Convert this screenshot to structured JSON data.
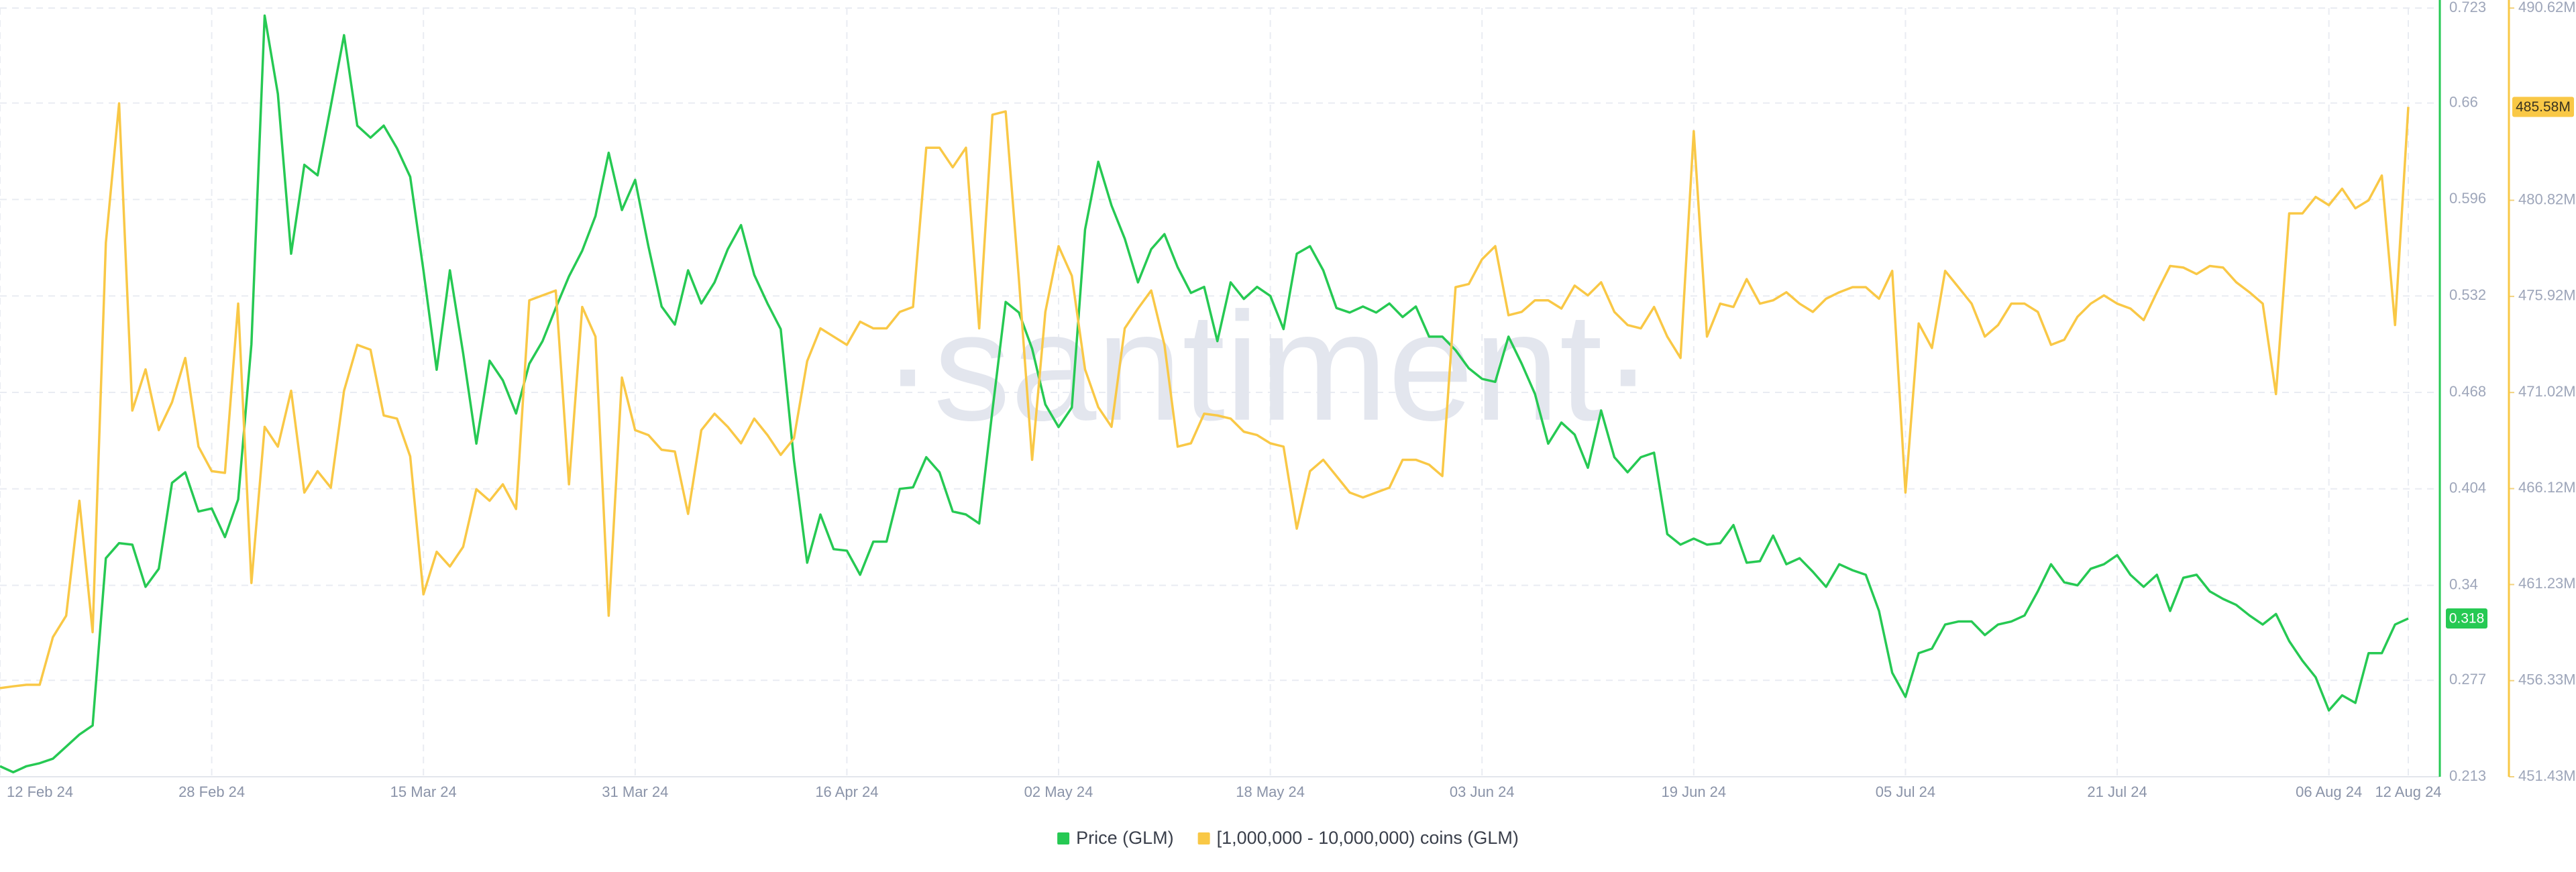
{
  "chart_data": {
    "type": "line",
    "watermark": "·santiment·",
    "x": [
      "2024-02-12",
      "2024-02-13",
      "2024-02-14",
      "2024-02-15",
      "2024-02-16",
      "2024-02-17",
      "2024-02-18",
      "2024-02-19",
      "2024-02-20",
      "2024-02-21",
      "2024-02-22",
      "2024-02-23",
      "2024-02-24",
      "2024-02-25",
      "2024-02-26",
      "2024-02-27",
      "2024-02-28",
      "2024-02-29",
      "2024-03-01",
      "2024-03-02",
      "2024-03-03",
      "2024-03-04",
      "2024-03-05",
      "2024-03-06",
      "2024-03-07",
      "2024-03-08",
      "2024-03-09",
      "2024-03-10",
      "2024-03-11",
      "2024-03-12",
      "2024-03-13",
      "2024-03-14",
      "2024-03-15",
      "2024-03-16",
      "2024-03-17",
      "2024-03-18",
      "2024-03-19",
      "2024-03-20",
      "2024-03-21",
      "2024-03-22",
      "2024-03-23",
      "2024-03-24",
      "2024-03-25",
      "2024-03-26",
      "2024-03-27",
      "2024-03-28",
      "2024-03-29",
      "2024-03-30",
      "2024-03-31",
      "2024-04-01",
      "2024-04-02",
      "2024-04-03",
      "2024-04-04",
      "2024-04-05",
      "2024-04-06",
      "2024-04-07",
      "2024-04-08",
      "2024-04-09",
      "2024-04-10",
      "2024-04-11",
      "2024-04-12",
      "2024-04-13",
      "2024-04-14",
      "2024-04-15",
      "2024-04-16",
      "2024-04-17",
      "2024-04-18",
      "2024-04-19",
      "2024-04-20",
      "2024-04-21",
      "2024-04-22",
      "2024-04-23",
      "2024-04-24",
      "2024-04-25",
      "2024-04-26",
      "2024-04-27",
      "2024-04-28",
      "2024-04-29",
      "2024-04-30",
      "2024-05-01",
      "2024-05-02",
      "2024-05-03",
      "2024-05-04",
      "2024-05-05",
      "2024-05-06",
      "2024-05-07",
      "2024-05-08",
      "2024-05-09",
      "2024-05-10",
      "2024-05-11",
      "2024-05-12",
      "2024-05-13",
      "2024-05-14",
      "2024-05-15",
      "2024-05-16",
      "2024-05-17",
      "2024-05-18",
      "2024-05-19",
      "2024-05-20",
      "2024-05-21",
      "2024-05-22",
      "2024-05-23",
      "2024-05-24",
      "2024-05-25",
      "2024-05-26",
      "2024-05-27",
      "2024-05-28",
      "2024-05-29",
      "2024-05-30",
      "2024-05-31",
      "2024-06-01",
      "2024-06-02",
      "2024-06-03",
      "2024-06-04",
      "2024-06-05",
      "2024-06-06",
      "2024-06-07",
      "2024-06-08",
      "2024-06-09",
      "2024-06-10",
      "2024-06-11",
      "2024-06-12",
      "2024-06-13",
      "2024-06-14",
      "2024-06-15",
      "2024-06-16",
      "2024-06-17",
      "2024-06-18",
      "2024-06-19",
      "2024-06-20",
      "2024-06-21",
      "2024-06-22",
      "2024-06-23",
      "2024-06-24",
      "2024-06-25",
      "2024-06-26",
      "2024-06-27",
      "2024-06-28",
      "2024-06-29",
      "2024-06-30",
      "2024-07-01",
      "2024-07-02",
      "2024-07-03",
      "2024-07-04",
      "2024-07-05",
      "2024-07-06",
      "2024-07-07",
      "2024-07-08",
      "2024-07-09",
      "2024-07-10",
      "2024-07-11",
      "2024-07-12",
      "2024-07-13",
      "2024-07-14",
      "2024-07-15",
      "2024-07-16",
      "2024-07-17",
      "2024-07-18",
      "2024-07-19",
      "2024-07-20",
      "2024-07-21",
      "2024-07-22",
      "2024-07-23",
      "2024-07-24",
      "2024-07-25",
      "2024-07-26",
      "2024-07-27",
      "2024-07-28",
      "2024-07-29",
      "2024-07-30",
      "2024-07-31",
      "2024-08-01",
      "2024-08-02",
      "2024-08-03",
      "2024-08-04",
      "2024-08-05",
      "2024-08-06",
      "2024-08-07",
      "2024-08-08",
      "2024-08-09",
      "2024-08-10",
      "2024-08-11",
      "2024-08-12"
    ],
    "xlim": [
      "2024-02-12",
      "2024-08-12"
    ],
    "xticks": [
      {
        "value": "2024-02-12",
        "label": "12 Feb 24"
      },
      {
        "value": "2024-02-28",
        "label": "28 Feb 24"
      },
      {
        "value": "2024-03-15",
        "label": "15 Mar 24"
      },
      {
        "value": "2024-03-31",
        "label": "31 Mar 24"
      },
      {
        "value": "2024-04-16",
        "label": "16 Apr 24"
      },
      {
        "value": "2024-05-02",
        "label": "02 May 24"
      },
      {
        "value": "2024-05-18",
        "label": "18 May 24"
      },
      {
        "value": "2024-06-03",
        "label": "03 Jun 24"
      },
      {
        "value": "2024-06-19",
        "label": "19 Jun 24"
      },
      {
        "value": "2024-07-05",
        "label": "05 Jul 24"
      },
      {
        "value": "2024-07-21",
        "label": "21 Jul 24"
      },
      {
        "value": "2024-08-06",
        "label": "06 Aug 24"
      },
      {
        "value": "2024-08-12",
        "label": "12 Aug 24"
      }
    ],
    "ylim": [
      0.213,
      0.723
    ],
    "yticks": [
      0.723,
      0.66,
      0.596,
      0.532,
      0.468,
      0.404,
      0.34,
      0.277,
      0.213
    ],
    "y2lim": [
      451430000,
      490620000
    ],
    "y2ticks": [
      {
        "value": 490620000,
        "label": "490.62M"
      },
      {
        "value": 480820000,
        "label": "480.82M"
      },
      {
        "value": 475920000,
        "label": "475.92M"
      },
      {
        "value": 471020000,
        "label": "471.02M"
      },
      {
        "value": 466120000,
        "label": "466.12M"
      },
      {
        "value": 461230000,
        "label": "461.23M"
      },
      {
        "value": 456330000,
        "label": "456.33M"
      },
      {
        "value": 451430000,
        "label": "451.43M"
      }
    ],
    "grid": true,
    "legend": "bottom",
    "series": [
      {
        "name": "Price (GLM)",
        "color": "#26c953",
        "values": [
          0.22,
          0.216,
          0.22,
          0.222,
          0.225,
          0.233,
          0.241,
          0.247,
          0.358,
          0.368,
          0.367,
          0.339,
          0.351,
          0.408,
          0.415,
          0.389,
          0.391,
          0.372,
          0.397,
          0.5,
          0.718,
          0.666,
          0.56,
          0.619,
          0.612,
          0.658,
          0.705,
          0.645,
          0.637,
          0.645,
          0.63,
          0.611,
          0.549,
          0.483,
          0.549,
          0.494,
          0.434,
          0.489,
          0.476,
          0.454,
          0.487,
          0.502,
          0.524,
          0.545,
          0.562,
          0.585,
          0.627,
          0.589,
          0.609,
          0.565,
          0.525,
          0.513,
          0.549,
          0.527,
          0.541,
          0.563,
          0.579,
          0.546,
          0.527,
          0.51,
          0.423,
          0.355,
          0.387,
          0.364,
          0.363,
          0.347,
          0.369,
          0.369,
          0.404,
          0.405,
          0.425,
          0.415,
          0.389,
          0.387,
          0.381,
          0.456,
          0.528,
          0.521,
          0.497,
          0.46,
          0.445,
          0.458,
          0.576,
          0.621,
          0.592,
          0.57,
          0.541,
          0.563,
          0.573,
          0.551,
          0.534,
          0.538,
          0.502,
          0.541,
          0.53,
          0.538,
          0.532,
          0.51,
          0.56,
          0.565,
          0.549,
          0.524,
          0.521,
          0.525,
          0.521,
          0.527,
          0.518,
          0.525,
          0.505,
          0.505,
          0.496,
          0.484,
          0.477,
          0.475,
          0.505,
          0.487,
          0.467,
          0.434,
          0.448,
          0.44,
          0.418,
          0.456,
          0.425,
          0.415,
          0.425,
          0.428,
          0.374,
          0.367,
          0.371,
          0.367,
          0.368,
          0.38,
          0.355,
          0.356,
          0.373,
          0.354,
          0.358,
          0.349,
          0.339,
          0.354,
          0.35,
          0.347,
          0.323,
          0.282,
          0.266,
          0.295,
          0.298,
          0.314,
          0.316,
          0.316,
          0.307,
          0.314,
          0.316,
          0.32,
          0.336,
          0.354,
          0.342,
          0.34,
          0.351,
          0.354,
          0.36,
          0.347,
          0.339,
          0.347,
          0.323,
          0.345,
          0.347,
          0.336,
          0.331,
          0.327,
          0.32,
          0.314,
          0.321,
          0.303,
          0.29,
          0.279,
          0.257,
          0.267,
          0.262,
          0.295,
          0.295,
          0.314,
          0.318
        ]
      },
      {
        "name": "[1,000,000 - 10,000,000) coins (GLM)",
        "color": "#f9c846",
        "axis": "y2",
        "values": [
          455950000,
          456040000,
          456120000,
          456120000,
          458550000,
          459640000,
          465500000,
          458800000,
          478650000,
          485760000,
          470100000,
          472200000,
          469100000,
          470520000,
          472780000,
          468260000,
          467010000,
          466920000,
          475550000,
          461310000,
          469270000,
          468260000,
          471110000,
          465920000,
          467010000,
          466170000,
          471110000,
          473450000,
          473200000,
          469850000,
          469690000,
          467760000,
          460730000,
          462900000,
          462150000,
          463150000,
          466090000,
          465500000,
          466340000,
          465080000,
          475720000,
          475970000,
          476220000,
          466340000,
          475380000,
          473870000,
          459640000,
          471780000,
          469100000,
          468850000,
          468100000,
          468010000,
          464830000,
          469100000,
          469940000,
          469270000,
          468430000,
          469690000,
          468850000,
          467840000,
          468680000,
          472620000,
          474290000,
          473870000,
          473450000,
          474630000,
          474290000,
          474290000,
          475130000,
          475380000,
          483500000,
          483500000,
          482500000,
          483500000,
          474290000,
          485180000,
          485350000,
          476800000,
          467590000,
          475130000,
          478480000,
          476970000,
          472200000,
          470270000,
          469270000,
          474290000,
          475300000,
          476220000,
          473450000,
          468260000,
          468430000,
          469940000,
          469850000,
          469690000,
          469020000,
          468850000,
          468430000,
          468260000,
          464080000,
          467010000,
          467590000,
          466760000,
          465920000,
          465670000,
          465920000,
          466170000,
          467590000,
          467590000,
          467340000,
          466760000,
          476390000,
          476550000,
          477810000,
          478480000,
          474960000,
          475130000,
          475720000,
          475720000,
          475300000,
          476470000,
          475970000,
          476640000,
          475130000,
          474460000,
          474290000,
          475380000,
          473870000,
          472780000,
          484340000,
          473870000,
          475550000,
          475380000,
          476800000,
          475550000,
          475720000,
          476130000,
          475550000,
          475130000,
          475800000,
          476130000,
          476390000,
          476390000,
          475800000,
          477220000,
          465920000,
          474540000,
          473290000,
          477220000,
          476390000,
          475550000,
          473870000,
          474460000,
          475550000,
          475550000,
          475130000,
          473450000,
          473710000,
          474880000,
          475550000,
          475970000,
          475550000,
          475300000,
          474710000,
          476130000,
          477470000,
          477390000,
          477060000,
          477470000,
          477390000,
          476640000,
          476130000,
          475550000,
          470940000,
          480150000,
          480150000,
          480990000,
          480570000,
          481410000,
          480410000,
          480820000,
          482080000,
          474460000,
          485580000
        ],
        "value_labels": [
          null,
          null,
          null,
          null,
          null,
          null,
          null,
          null,
          null,
          null,
          null,
          null,
          null,
          null,
          null,
          null,
          null,
          null,
          null,
          null,
          null,
          null,
          null,
          null,
          null,
          null,
          null,
          null,
          null,
          null,
          null,
          null,
          null,
          null,
          null,
          null,
          null,
          null,
          null,
          null,
          null,
          null,
          null,
          null,
          null,
          null,
          null,
          null,
          null,
          null,
          null,
          null,
          null,
          null,
          null,
          null,
          null,
          null,
          null,
          null,
          null,
          null,
          null,
          null,
          null,
          null,
          null,
          null,
          null,
          null,
          null,
          null,
          null,
          null,
          null,
          null,
          null,
          null,
          null,
          null,
          null,
          null,
          null,
          null,
          null,
          null,
          null,
          null,
          null,
          null,
          null,
          null,
          null,
          null,
          null,
          null,
          null,
          null,
          null,
          null,
          null,
          null,
          null,
          null,
          null,
          null,
          null,
          null,
          null,
          null,
          null,
          null,
          null,
          null,
          null,
          null,
          null,
          null,
          null,
          null,
          null,
          null,
          null,
          null,
          null,
          null,
          null,
          null,
          null,
          null,
          null,
          null,
          null,
          null,
          null,
          null,
          null,
          null,
          null,
          null,
          null,
          null,
          null,
          null,
          null,
          null,
          null,
          null,
          null,
          null,
          null,
          null,
          null,
          null,
          null,
          null,
          null,
          null,
          null,
          null,
          null,
          null,
          null,
          null,
          null,
          null,
          null,
          null,
          null,
          null,
          null,
          null,
          null,
          null,
          null,
          null,
          null,
          null,
          null,
          null,
          null,
          null,
          "485.58M"
        ]
      }
    ]
  }
}
